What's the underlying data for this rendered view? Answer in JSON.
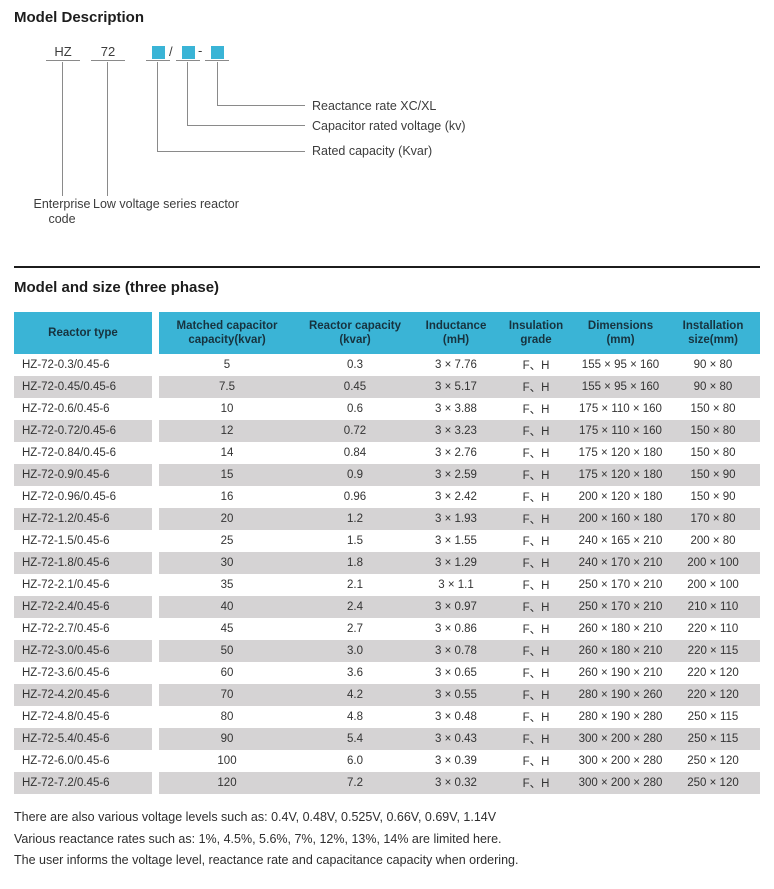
{
  "colors": {
    "accent": "#3ab4d6",
    "stripe": "#d5d3d4",
    "header_text": "#17333f"
  },
  "section_model": {
    "title": "Model Description",
    "code": {
      "part1": "HZ",
      "part2": "72",
      "slash": "/",
      "dash": "-"
    },
    "callouts": {
      "reactance": "Reactance rate XC/XL",
      "voltage": "Capacitor rated voltage (kv)",
      "capacity": "Rated capacity (Kvar)"
    },
    "bottom_labels": {
      "enterprise": "Enterprise code",
      "reactor": "Low voltage series reactor"
    }
  },
  "section_table": {
    "title": "Model and size (three phase)",
    "columns": [
      "Reactor type",
      "Matched capacitor\ncapacity(kvar)",
      "Reactor capacity\n(kvar)",
      "Inductance\n(mH)",
      "Insulation\ngrade",
      "Dimensions\n(mm)",
      "Installation\nsize(mm)"
    ],
    "rows": [
      [
        "HZ-72-0.3/0.45-6",
        "5",
        "0.3",
        "3 × 7.76",
        "F、H",
        "155 × 95 × 160",
        "90 × 80"
      ],
      [
        "HZ-72-0.45/0.45-6",
        "7.5",
        "0.45",
        "3 × 5.17",
        "F、H",
        "155 × 95 × 160",
        "90 × 80"
      ],
      [
        "HZ-72-0.6/0.45-6",
        "10",
        "0.6",
        "3 × 3.88",
        "F、H",
        "175 × 110 × 160",
        "150 × 80"
      ],
      [
        "HZ-72-0.72/0.45-6",
        "12",
        "0.72",
        "3 × 3.23",
        "F、H",
        "175 × 110 × 160",
        "150 × 80"
      ],
      [
        "HZ-72-0.84/0.45-6",
        "14",
        "0.84",
        "3 × 2.76",
        "F、H",
        "175 × 120 × 180",
        "150 × 80"
      ],
      [
        "HZ-72-0.9/0.45-6",
        "15",
        "0.9",
        "3 × 2.59",
        "F、H",
        "175 × 120 × 180",
        "150 × 90"
      ],
      [
        "HZ-72-0.96/0.45-6",
        "16",
        "0.96",
        "3 × 2.42",
        "F、H",
        "200 × 120 × 180",
        "150 × 90"
      ],
      [
        "HZ-72-1.2/0.45-6",
        "20",
        "1.2",
        "3 × 1.93",
        "F、H",
        "200 × 160 × 180",
        "170 × 80"
      ],
      [
        "HZ-72-1.5/0.45-6",
        "25",
        "1.5",
        "3 × 1.55",
        "F、H",
        "240 × 165 × 210",
        "200 × 80"
      ],
      [
        "HZ-72-1.8/0.45-6",
        "30",
        "1.8",
        "3 × 1.29",
        "F、H",
        "240 × 170 × 210",
        "200 × 100"
      ],
      [
        "HZ-72-2.1/0.45-6",
        "35",
        "2.1",
        "3 × 1.1",
        "F、H",
        "250 × 170 × 210",
        "200 × 100"
      ],
      [
        "HZ-72-2.4/0.45-6",
        "40",
        "2.4",
        "3 × 0.97",
        "F、H",
        "250 × 170 × 210",
        "210 × 110"
      ],
      [
        "HZ-72-2.7/0.45-6",
        "45",
        "2.7",
        "3 × 0.86",
        "F、H",
        "260 × 180 × 210",
        "220 × 110"
      ],
      [
        "HZ-72-3.0/0.45-6",
        "50",
        "3.0",
        "3 × 0.78",
        "F、H",
        "260 × 180 × 210",
        "220 × 115"
      ],
      [
        "HZ-72-3.6/0.45-6",
        "60",
        "3.6",
        "3 × 0.65",
        "F、H",
        "260 × 190 × 210",
        "220 × 120"
      ],
      [
        "HZ-72-4.2/0.45-6",
        "70",
        "4.2",
        "3 × 0.55",
        "F、H",
        "280 × 190 × 260",
        "220 × 120"
      ],
      [
        "HZ-72-4.8/0.45-6",
        "80",
        "4.8",
        "3 × 0.48",
        "F、H",
        "280 × 190 × 280",
        "250 × 115"
      ],
      [
        "HZ-72-5.4/0.45-6",
        "90",
        "5.4",
        "3 × 0.43",
        "F、H",
        "300 × 200 × 280",
        "250 × 115"
      ],
      [
        "HZ-72-6.0/0.45-6",
        "100",
        "6.0",
        "3 × 0.39",
        "F、H",
        "300 × 200 × 280",
        "250 × 120"
      ],
      [
        "HZ-72-7.2/0.45-6",
        "120",
        "7.2",
        "3 × 0.32",
        "F、H",
        "300 × 200 × 280",
        "250 × 120"
      ]
    ]
  },
  "notes": [
    "There are also various voltage levels such as: 0.4V, 0.48V, 0.525V, 0.66V, 0.69V, 1.14V",
    "Various reactance rates such as: 1%, 4.5%, 5.6%, 7%, 12%, 13%, 14% are limited here.",
    "The user informs the voltage level, reactance rate and capacitance capacity when ordering."
  ]
}
